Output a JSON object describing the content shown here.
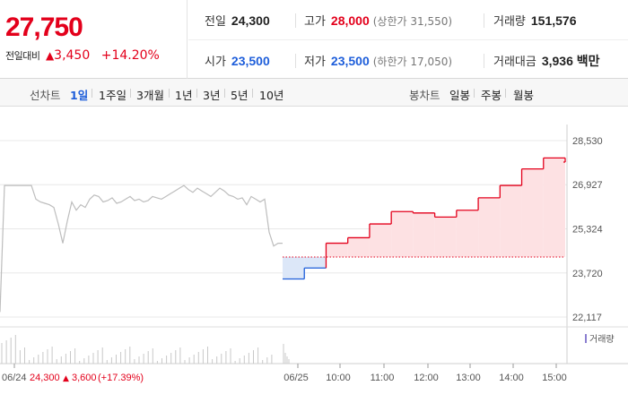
{
  "quote": {
    "price": "27,750",
    "change_label": "전일대비",
    "change_arrow": "▲",
    "change_amount": "3,450",
    "change_rate": "+14.20%"
  },
  "stats": {
    "prev_close": {
      "label": "전일",
      "value": "24,300"
    },
    "high": {
      "label": "고가",
      "value": "28,000",
      "sub": "(상한가 31,550)"
    },
    "volume": {
      "label": "거래량",
      "value": "151,576"
    },
    "open": {
      "label": "시가",
      "value": "23,500"
    },
    "low": {
      "label": "저가",
      "value": "23,500",
      "sub": "(하한가 17,050)"
    },
    "trade_value": {
      "label": "거래대금",
      "value": "3,936 백만"
    }
  },
  "toolbar": {
    "line_chart_label": "선차트",
    "periods": [
      "1일",
      "1주일",
      "3개월",
      "1년",
      "3년",
      "5년",
      "10년"
    ],
    "active_period": "1일",
    "candle_chart_label": "봉차트",
    "candles": [
      "일봉",
      "주봉",
      "월봉"
    ]
  },
  "chart": {
    "y_ticks": [
      "28,530",
      "26,927",
      "25,324",
      "23,720",
      "22,117"
    ],
    "x_labels": [
      "06/24",
      "06/25",
      "10:00",
      "11:00",
      "12:00",
      "13:00",
      "14:00",
      "15:00"
    ],
    "volume_legend": "거래량",
    "footer": {
      "date": "06/24",
      "price": "24,300",
      "arrow": "▲",
      "change": "3,600",
      "rate": "(+17.39%)"
    },
    "colors": {
      "up": "#e3001b",
      "down": "#1e5eda",
      "hist": "#bdbdbd",
      "up_fill": "#fde1e3",
      "down_fill": "#dce7f8"
    }
  },
  "chart_data": {
    "type": "line",
    "title": "",
    "ylim": [
      22117,
      28530
    ],
    "y_ticks": [
      28530,
      26927,
      25324,
      23720,
      22117
    ],
    "reference_price": 24300,
    "previous_day": {
      "date": "06/24",
      "values": [
        22300,
        26900,
        26900,
        26900,
        26900,
        26900,
        26900,
        26900,
        26400,
        26300,
        26250,
        26200,
        26100,
        25500,
        24800,
        25600,
        26300,
        26000,
        26200,
        26100,
        26400,
        26550,
        26500,
        26300,
        26350,
        26450,
        26250,
        26300,
        26400,
        26500,
        26350,
        26400,
        26300,
        26350,
        26500,
        26450,
        26400,
        26500,
        26600,
        26700,
        26800,
        26900,
        26750,
        26650,
        26800,
        26700,
        26600,
        26500,
        26650,
        26800,
        26700,
        26550,
        26500,
        26400,
        26450,
        26200,
        26500,
        26400,
        26300,
        26400,
        25200,
        24700,
        24800,
        24800
      ]
    },
    "current_day": {
      "date": "06/25",
      "x": [
        "09:00",
        "09:30",
        "10:00",
        "10:30",
        "11:00",
        "11:30",
        "12:00",
        "12:30",
        "13:00",
        "13:30",
        "14:00",
        "14:30",
        "15:00",
        "15:20"
      ],
      "values": [
        23500,
        23900,
        24800,
        25000,
        25500,
        25950,
        25900,
        25750,
        26000,
        26450,
        26900,
        27500,
        27900,
        27750
      ]
    }
  }
}
